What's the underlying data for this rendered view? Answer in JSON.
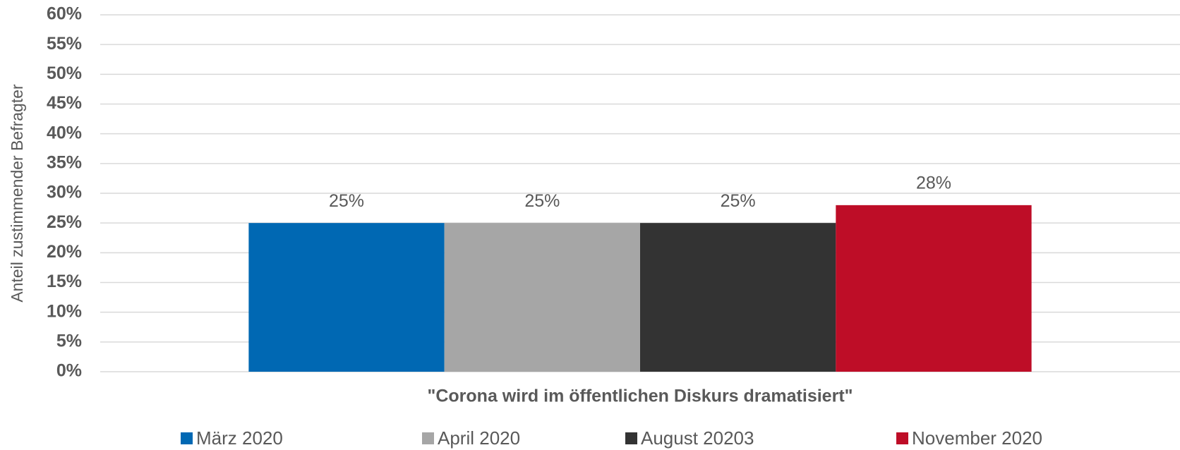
{
  "chart_data": {
    "type": "bar",
    "y_label": "Anteil zustimmender Befragter",
    "categories": [
      "\"Corona wird im öffentlichen Diskurs dramatisiert\""
    ],
    "series": [
      {
        "name": "März 2020",
        "color": "#0068b3",
        "values": [
          25
        ],
        "value_labels": [
          "25%"
        ]
      },
      {
        "name": "April 2020",
        "color": "#a6a6a6",
        "values": [
          25
        ],
        "value_labels": [
          "25%"
        ]
      },
      {
        "name": "August 20203",
        "color": "#333333",
        "values": [
          25
        ],
        "value_labels": [
          "25%"
        ]
      },
      {
        "name": "November 2020",
        "color": "#be0d27",
        "values": [
          28
        ],
        "value_labels": [
          "28%"
        ]
      }
    ],
    "ylim": [
      0,
      60
    ],
    "yticks": [
      {
        "value": 0,
        "label": "0%"
      },
      {
        "value": 5,
        "label": "5%"
      },
      {
        "value": 10,
        "label": "10%"
      },
      {
        "value": 15,
        "label": "15%"
      },
      {
        "value": 20,
        "label": "20%"
      },
      {
        "value": 25,
        "label": "25%"
      },
      {
        "value": 30,
        "label": "30%"
      },
      {
        "value": 35,
        "label": "35%"
      },
      {
        "value": 40,
        "label": "40%"
      },
      {
        "value": 45,
        "label": "45%"
      },
      {
        "value": 50,
        "label": "50%"
      },
      {
        "value": 55,
        "label": "55%"
      },
      {
        "value": 60,
        "label": "60%"
      }
    ],
    "grid": true,
    "legend": "bottom"
  }
}
